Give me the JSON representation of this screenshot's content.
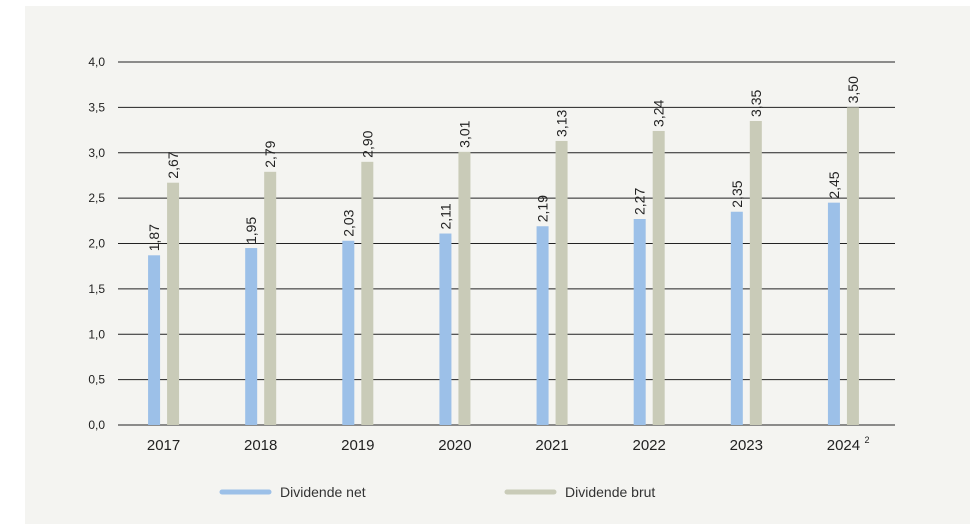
{
  "colors": {
    "background": "#f4f4f1",
    "net": "#9cc0e8",
    "brut": "#c9cbb8",
    "gridline": "#222222"
  },
  "chart_data": {
    "type": "bar",
    "title": "",
    "xlabel": "",
    "ylabel": "",
    "categories": [
      "2017",
      "2018",
      "2019",
      "2020",
      "2021",
      "2022",
      "2023",
      "2024"
    ],
    "category_superscripts": [
      "",
      "",
      "",
      "",
      "",
      "",
      "",
      "2"
    ],
    "series": [
      {
        "name": "Dividende net",
        "values": [
          1.87,
          1.95,
          2.03,
          2.11,
          2.19,
          2.27,
          2.35,
          2.45
        ]
      },
      {
        "name": "Dividende brut",
        "values": [
          2.67,
          2.79,
          2.9,
          3.01,
          3.13,
          3.24,
          3.35,
          3.5
        ]
      }
    ],
    "ylim": [
      0,
      4.0
    ],
    "yticks": [
      0,
      0.5,
      1.0,
      1.5,
      2.0,
      2.5,
      3.0,
      3.5,
      4.0
    ],
    "ytick_labels": [
      "0,0",
      "0,5",
      "1,0",
      "1,5",
      "2,0",
      "2,5",
      "3,0",
      "3,5",
      "4,0"
    ],
    "value_labels": [
      [
        "1,87",
        "1,95",
        "2,03",
        "2,11",
        "2,19",
        "2,27",
        "2,35",
        "2,45"
      ],
      [
        "2,67",
        "2,79",
        "2,90",
        "3,01",
        "3,13",
        "3,24",
        "3,35",
        "3,50"
      ]
    ],
    "grid": true,
    "legend_position": "bottom-center"
  }
}
